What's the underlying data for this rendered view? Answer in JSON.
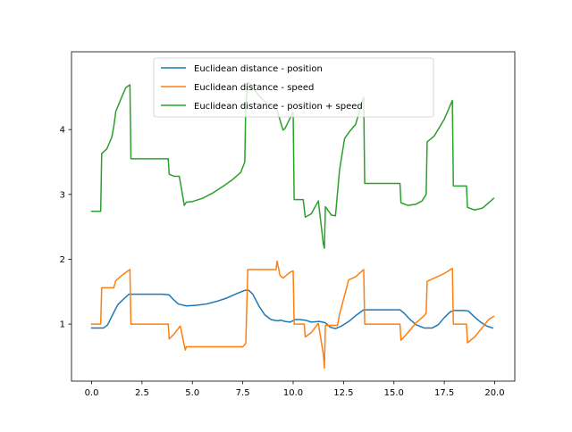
{
  "chart_data": {
    "type": "line",
    "title": "",
    "xlabel": "",
    "ylabel": "",
    "xlim": [
      -0.999,
      20.999
    ],
    "ylim": [
      0.12,
      5.2
    ],
    "x_ticks": [
      0.0,
      2.5,
      5.0,
      7.5,
      10.0,
      12.5,
      15.0,
      17.5,
      20.0
    ],
    "x_tick_labels": [
      "0.0",
      "2.5",
      "5.0",
      "7.5",
      "10.0",
      "12.5",
      "15.0",
      "17.5",
      "20.0"
    ],
    "y_ticks": [
      1,
      2,
      3,
      4
    ],
    "y_tick_labels": [
      "1",
      "2",
      "3",
      "4"
    ],
    "grid": false,
    "legend_position": "upper-center",
    "series": [
      {
        "name": "Euclidean distance - position",
        "color": "#1f77b4",
        "points": [
          [
            0.0,
            0.94
          ],
          [
            0.6,
            0.94
          ],
          [
            0.8,
            0.99
          ],
          [
            1.0,
            1.12
          ],
          [
            1.3,
            1.3
          ],
          [
            1.6,
            1.39
          ],
          [
            1.85,
            1.46
          ],
          [
            2.5,
            1.46
          ],
          [
            3.0,
            1.46
          ],
          [
            3.5,
            1.46
          ],
          [
            3.85,
            1.45
          ],
          [
            4.05,
            1.38
          ],
          [
            4.3,
            1.31
          ],
          [
            4.7,
            1.28
          ],
          [
            5.2,
            1.29
          ],
          [
            5.7,
            1.31
          ],
          [
            6.2,
            1.35
          ],
          [
            6.7,
            1.4
          ],
          [
            7.2,
            1.47
          ],
          [
            7.6,
            1.52
          ],
          [
            7.8,
            1.52
          ],
          [
            8.0,
            1.46
          ],
          [
            8.3,
            1.28
          ],
          [
            8.6,
            1.14
          ],
          [
            8.9,
            1.07
          ],
          [
            9.2,
            1.05
          ],
          [
            9.4,
            1.06
          ],
          [
            9.6,
            1.04
          ],
          [
            9.85,
            1.03
          ],
          [
            10.1,
            1.07
          ],
          [
            10.3,
            1.07
          ],
          [
            10.6,
            1.06
          ],
          [
            10.9,
            1.03
          ],
          [
            11.3,
            1.04
          ],
          [
            11.6,
            1.02
          ],
          [
            11.85,
            0.95
          ],
          [
            12.1,
            0.93
          ],
          [
            12.4,
            0.97
          ],
          [
            12.8,
            1.05
          ],
          [
            13.1,
            1.13
          ],
          [
            13.5,
            1.22
          ],
          [
            14.0,
            1.22
          ],
          [
            14.5,
            1.22
          ],
          [
            15.0,
            1.22
          ],
          [
            15.3,
            1.22
          ],
          [
            15.5,
            1.17
          ],
          [
            15.8,
            1.07
          ],
          [
            16.1,
            0.99
          ],
          [
            16.5,
            0.94
          ],
          [
            16.9,
            0.94
          ],
          [
            17.2,
            0.99
          ],
          [
            17.5,
            1.1
          ],
          [
            17.8,
            1.19
          ],
          [
            18.0,
            1.21
          ],
          [
            18.5,
            1.21
          ],
          [
            18.7,
            1.2
          ],
          [
            19.0,
            1.11
          ],
          [
            19.3,
            1.03
          ],
          [
            19.6,
            0.97
          ],
          [
            19.9,
            0.94
          ]
        ]
      },
      {
        "name": "Euclidean distance - speed",
        "color": "#ff7f0e",
        "points": [
          [
            0.0,
            1.0
          ],
          [
            0.45,
            1.0
          ],
          [
            0.5,
            1.56
          ],
          [
            1.1,
            1.56
          ],
          [
            1.2,
            1.67
          ],
          [
            1.5,
            1.75
          ],
          [
            1.8,
            1.82
          ],
          [
            1.9,
            1.84
          ],
          [
            1.95,
            1.0
          ],
          [
            3.8,
            1.0
          ],
          [
            3.85,
            0.77
          ],
          [
            4.1,
            0.85
          ],
          [
            4.4,
            0.97
          ],
          [
            4.55,
            0.74
          ],
          [
            4.65,
            0.6
          ],
          [
            4.7,
            0.65
          ],
          [
            7.5,
            0.65
          ],
          [
            7.65,
            0.7
          ],
          [
            7.75,
            1.84
          ],
          [
            9.15,
            1.84
          ],
          [
            9.2,
            1.97
          ],
          [
            9.35,
            1.75
          ],
          [
            9.5,
            1.71
          ],
          [
            9.85,
            1.8
          ],
          [
            10.0,
            1.82
          ],
          [
            10.05,
            1.0
          ],
          [
            10.55,
            1.0
          ],
          [
            10.6,
            0.8
          ],
          [
            10.9,
            0.87
          ],
          [
            11.25,
            1.01
          ],
          [
            11.5,
            0.53
          ],
          [
            11.55,
            0.32
          ],
          [
            11.6,
            0.98
          ],
          [
            12.2,
            0.98
          ],
          [
            12.3,
            1.15
          ],
          [
            12.6,
            1.5
          ],
          [
            12.75,
            1.68
          ],
          [
            13.1,
            1.73
          ],
          [
            13.5,
            1.84
          ],
          [
            13.55,
            1.0
          ],
          [
            15.3,
            1.0
          ],
          [
            15.35,
            0.75
          ],
          [
            15.7,
            0.87
          ],
          [
            16.1,
            1.02
          ],
          [
            16.5,
            1.13
          ],
          [
            16.6,
            1.17
          ],
          [
            16.65,
            1.66
          ],
          [
            17.5,
            1.78
          ],
          [
            17.9,
            1.86
          ],
          [
            17.95,
            1.0
          ],
          [
            18.6,
            1.0
          ],
          [
            18.65,
            0.71
          ],
          [
            19.0,
            0.8
          ],
          [
            19.4,
            0.95
          ],
          [
            19.7,
            1.07
          ],
          [
            19.95,
            1.12
          ]
        ]
      },
      {
        "name": "Euclidean distance - position + speed",
        "color": "#2ca02c",
        "points": [
          [
            0.0,
            2.74
          ],
          [
            0.45,
            2.74
          ],
          [
            0.5,
            3.63
          ],
          [
            0.75,
            3.7
          ],
          [
            1.0,
            3.88
          ],
          [
            1.1,
            4.05
          ],
          [
            1.2,
            4.28
          ],
          [
            1.45,
            4.47
          ],
          [
            1.7,
            4.65
          ],
          [
            1.9,
            4.69
          ],
          [
            1.95,
            3.55
          ],
          [
            3.8,
            3.55
          ],
          [
            3.85,
            3.31
          ],
          [
            4.1,
            3.28
          ],
          [
            4.35,
            3.28
          ],
          [
            4.6,
            2.83
          ],
          [
            4.7,
            2.88
          ],
          [
            5.0,
            2.89
          ],
          [
            5.5,
            2.94
          ],
          [
            6.0,
            3.02
          ],
          [
            6.5,
            3.12
          ],
          [
            7.0,
            3.23
          ],
          [
            7.4,
            3.34
          ],
          [
            7.6,
            3.5
          ],
          [
            7.65,
            4.4
          ],
          [
            7.75,
            4.72
          ],
          [
            7.9,
            4.7
          ],
          [
            8.3,
            4.52
          ],
          [
            8.7,
            4.4
          ],
          [
            9.2,
            4.3
          ],
          [
            9.5,
            3.99
          ],
          [
            9.6,
            4.02
          ],
          [
            10.0,
            4.27
          ],
          [
            10.05,
            2.92
          ],
          [
            10.5,
            2.92
          ],
          [
            10.6,
            2.65
          ],
          [
            10.9,
            2.7
          ],
          [
            11.25,
            2.9
          ],
          [
            11.5,
            2.23
          ],
          [
            11.55,
            2.17
          ],
          [
            11.6,
            2.81
          ],
          [
            11.9,
            2.68
          ],
          [
            12.1,
            2.67
          ],
          [
            12.3,
            3.37
          ],
          [
            12.55,
            3.86
          ],
          [
            12.8,
            3.97
          ],
          [
            13.1,
            4.08
          ],
          [
            13.5,
            4.5
          ],
          [
            13.55,
            3.17
          ],
          [
            15.3,
            3.17
          ],
          [
            15.35,
            2.87
          ],
          [
            15.7,
            2.83
          ],
          [
            16.1,
            2.85
          ],
          [
            16.4,
            2.9
          ],
          [
            16.6,
            3.0
          ],
          [
            16.65,
            3.81
          ],
          [
            17.0,
            3.9
          ],
          [
            17.5,
            4.16
          ],
          [
            17.9,
            4.45
          ],
          [
            17.95,
            3.13
          ],
          [
            18.6,
            3.13
          ],
          [
            18.65,
            2.8
          ],
          [
            19.0,
            2.76
          ],
          [
            19.4,
            2.79
          ],
          [
            19.7,
            2.87
          ],
          [
            19.95,
            2.94
          ]
        ]
      }
    ]
  }
}
